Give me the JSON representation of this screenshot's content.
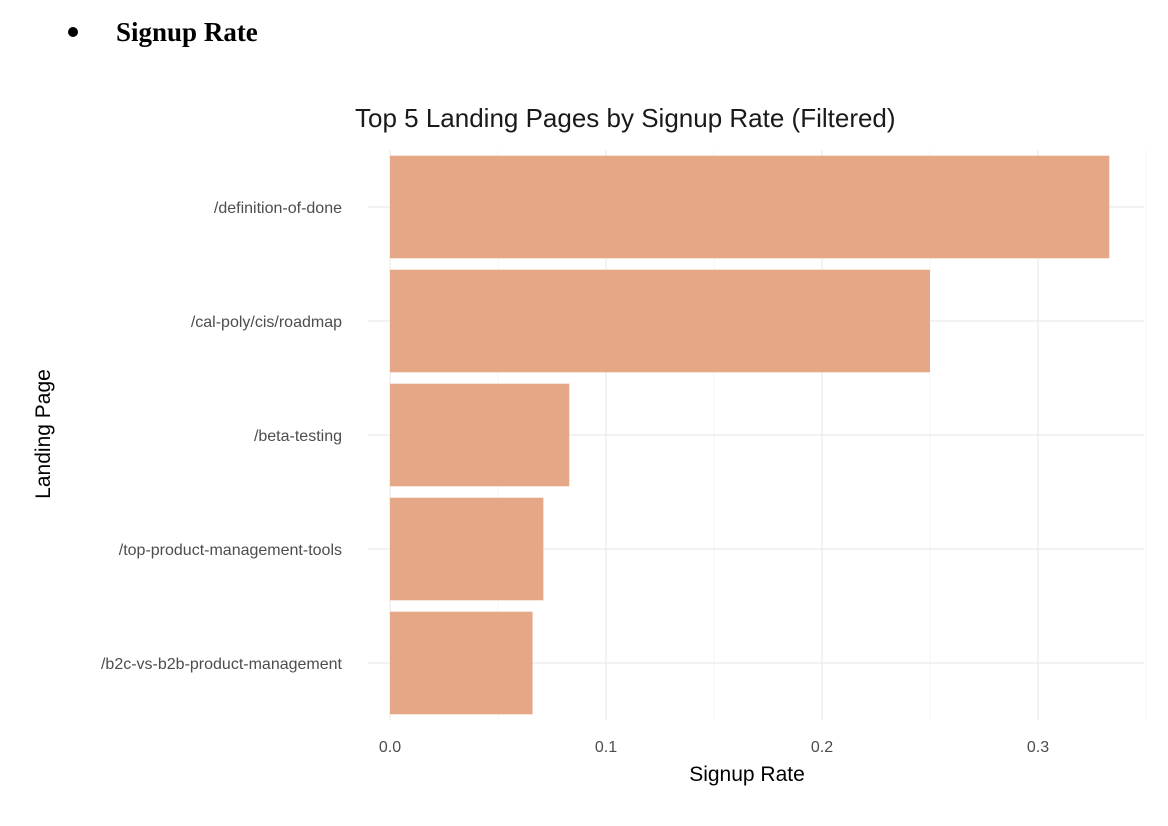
{
  "section": {
    "heading": "Signup Rate"
  },
  "chart_data": {
    "type": "bar",
    "orientation": "horizontal",
    "title": "Top 5 Landing Pages by Signup Rate (Filtered)",
    "xlabel": "Signup Rate",
    "ylabel": "Landing Page",
    "categories": [
      "/definition-of-done",
      "/cal-poly/cis/roadmap",
      "/beta-testing",
      "/top-product-management-tools",
      "/b2c-vs-b2b-product-management"
    ],
    "values": [
      0.333,
      0.25,
      0.083,
      0.071,
      0.066
    ],
    "xlim": [
      0,
      0.35
    ],
    "xticks": [
      0.0,
      0.1,
      0.2,
      0.3
    ],
    "xtick_labels": [
      "0.0",
      "0.1",
      "0.2",
      "0.3"
    ],
    "bar_color": "#e5a786",
    "grid": true,
    "legend": "none"
  }
}
